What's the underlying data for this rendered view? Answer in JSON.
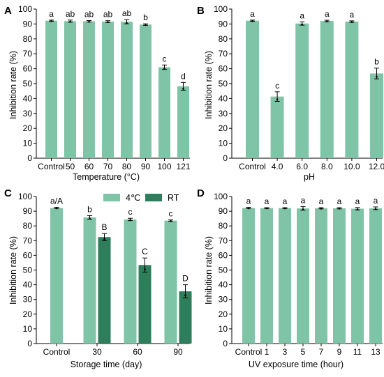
{
  "colors": {
    "light": "#7FC4A6",
    "dark": "#2E7D5B",
    "axis": "#000000"
  },
  "chart_data": [
    {
      "panel": "A",
      "type": "bar",
      "xlabel": "Temperature (°C)",
      "ylabel": "Inhibition rate (%)",
      "ylim": [
        0,
        100
      ],
      "yticks": [
        0,
        10,
        20,
        30,
        40,
        50,
        60,
        70,
        80,
        90,
        100
      ],
      "categories": [
        "Control",
        "50",
        "60",
        "70",
        "80",
        "90",
        "100",
        "121"
      ],
      "series": [
        {
          "color": "light",
          "values": [
            92.2,
            91.9,
            91.8,
            91.6,
            91.5,
            89.6,
            61.0,
            48.2
          ],
          "errors": [
            0.4,
            0.7,
            0.5,
            0.6,
            1.4,
            0.5,
            1.5,
            2.6
          ],
          "labels": [
            "a",
            "ab",
            "ab",
            "ab",
            "ab",
            "b",
            "c",
            "d"
          ]
        }
      ]
    },
    {
      "panel": "B",
      "type": "bar",
      "xlabel": "pH",
      "ylabel": "Inhibition rate (%)",
      "ylim": [
        0,
        100
      ],
      "yticks": [
        0,
        10,
        20,
        30,
        40,
        50,
        60,
        70,
        80,
        90,
        100
      ],
      "categories": [
        "Control",
        "4.0",
        "6.0",
        "8.0",
        "10.0",
        "12.0"
      ],
      "series": [
        {
          "color": "light",
          "values": [
            92.2,
            41.3,
            90.3,
            92.0,
            91.6,
            56.8
          ],
          "errors": [
            0.4,
            3.2,
            1.1,
            0.5,
            0.5,
            3.6
          ],
          "labels": [
            "a",
            "c",
            "a",
            "a",
            "a",
            "b"
          ]
        }
      ]
    },
    {
      "panel": "C",
      "type": "bar",
      "xlabel": "Storage time (day)",
      "ylabel": "Inhibition rate (%)",
      "ylim": [
        0,
        100
      ],
      "yticks": [
        0,
        10,
        20,
        30,
        40,
        50,
        60,
        70,
        80,
        90,
        100
      ],
      "categories": [
        "Control",
        "30",
        "60",
        "90"
      ],
      "legend": {
        "position": "top",
        "entries": [
          "4℃",
          "RT"
        ]
      },
      "series": [
        {
          "name": "4℃",
          "color": "light",
          "values": [
            92.2,
            85.8,
            84.4,
            83.6
          ],
          "errors": [
            0.4,
            1.2,
            0.8,
            0.5
          ],
          "labels": [
            "a/A",
            "b",
            "c",
            "c"
          ]
        },
        {
          "name": "RT",
          "color": "dark",
          "values": [
            null,
            72.4,
            53.4,
            35.5
          ],
          "errors": [
            null,
            2.4,
            4.8,
            4.5
          ],
          "labels": [
            null,
            "B",
            "C",
            "D"
          ]
        }
      ]
    },
    {
      "panel": "D",
      "type": "bar",
      "xlabel": "UV exposure time (hour)",
      "ylabel": "Inhibition rate (%)",
      "ylim": [
        0,
        100
      ],
      "yticks": [
        0,
        10,
        20,
        30,
        40,
        50,
        60,
        70,
        80,
        90,
        100
      ],
      "categories": [
        "Control",
        "1",
        "3",
        "5",
        "7",
        "9",
        "11",
        "13"
      ],
      "series": [
        {
          "color": "light",
          "values": [
            92.2,
            92.1,
            92.1,
            91.9,
            92.0,
            92.0,
            91.7,
            92.0
          ],
          "errors": [
            0.4,
            0.3,
            0.3,
            1.2,
            0.4,
            0.4,
            0.8,
            0.9
          ],
          "labels": [
            "a",
            "a",
            "a",
            "a",
            "a",
            "a",
            "a",
            "a"
          ]
        }
      ]
    }
  ]
}
